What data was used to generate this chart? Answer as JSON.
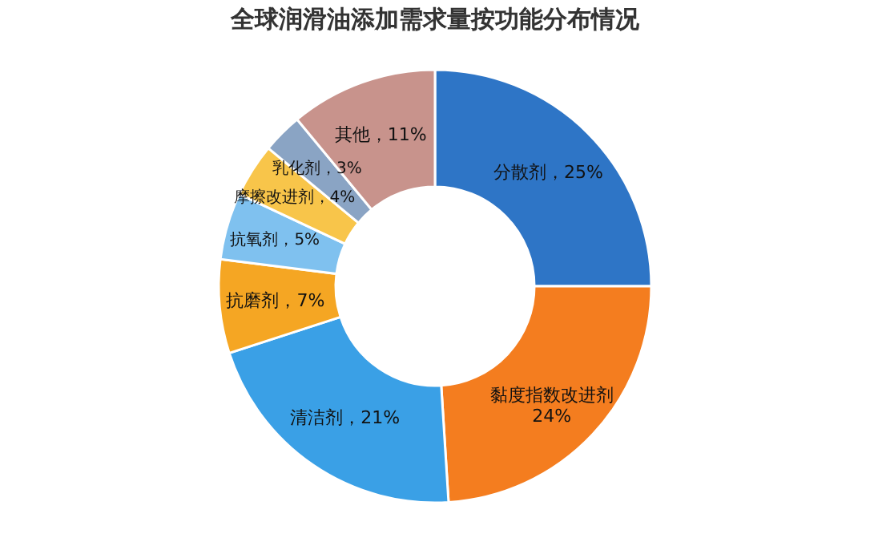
{
  "chart_data": {
    "type": "donut",
    "title": "全球润滑油添加需求量按功能分布情况",
    "categories": [
      "分散剂",
      "黏度指数改进剂",
      "清洁剂",
      "抗磨剂",
      "抗氧剂",
      "摩擦改进剂",
      "乳化剂",
      "其他"
    ],
    "values": [
      25,
      24,
      21,
      7,
      5,
      4,
      3,
      11
    ],
    "colors": [
      "#2e75c6",
      "#f47d1f",
      "#3aa0e6",
      "#f5a623",
      "#7fc1ef",
      "#f8c54a",
      "#8aa4c4",
      "#c8938c"
    ],
    "value_labels": [
      "25%",
      "24%",
      "21%",
      "7%",
      "5%",
      "4%",
      "3%",
      "11%"
    ],
    "legend": false
  }
}
